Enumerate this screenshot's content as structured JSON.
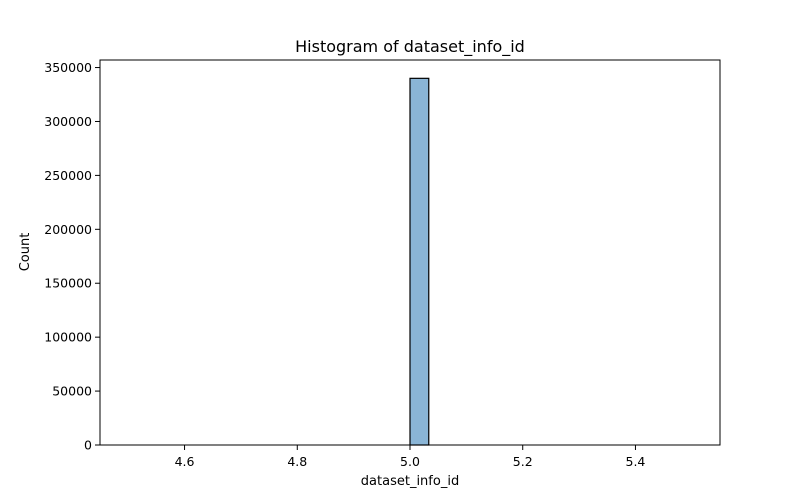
{
  "chart_data": {
    "type": "bar",
    "title": "Histogram of dataset_info_id",
    "xlabel": "dataset_info_id",
    "ylabel": "Count",
    "xlim": [
      4.45,
      5.55
    ],
    "ylim": [
      0,
      357000
    ],
    "x_ticks": [
      "4.6",
      "4.8",
      "5.0",
      "5.2",
      "5.4"
    ],
    "x_tick_values": [
      4.6,
      4.8,
      5.0,
      5.2,
      5.4
    ],
    "y_ticks": [
      "0",
      "50000",
      "100000",
      "150000",
      "200000",
      "250000",
      "300000",
      "350000"
    ],
    "y_tick_values": [
      0,
      50000,
      100000,
      150000,
      200000,
      250000,
      300000,
      350000
    ],
    "bin_range": [
      4.5,
      5.5
    ],
    "bin_count": 30,
    "bins": [
      {
        "x0": 5.0,
        "x1": 5.0333,
        "count": 340000
      }
    ],
    "bar_color": "#8ab5d6",
    "edge_color": "#000000",
    "grid": false,
    "legend": "none"
  }
}
